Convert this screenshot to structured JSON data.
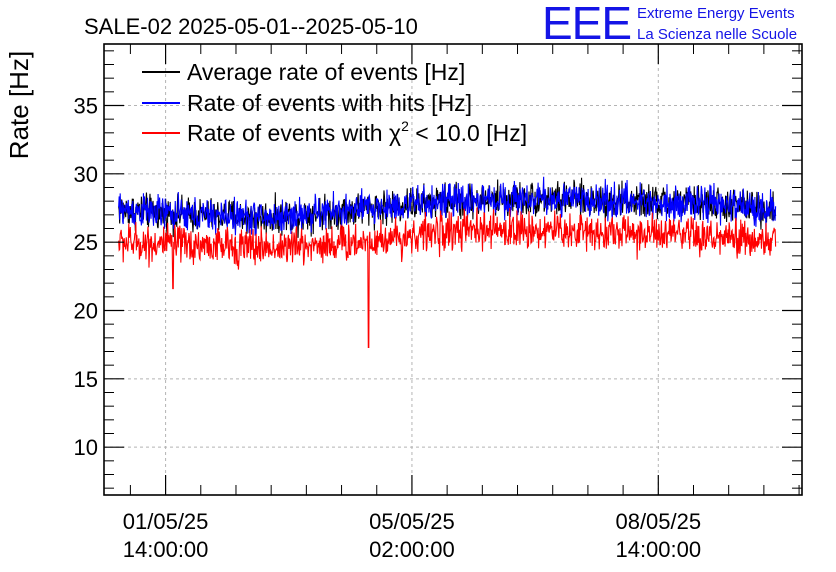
{
  "chart_data": {
    "type": "line",
    "title": "SALE-02 2025-05-01--2025-05-10",
    "logo": {
      "mark": "EEE",
      "line1": "Extreme Energy Events",
      "line2": "La Scienza nelle Scuole"
    },
    "ylabel": "Rate [Hz]",
    "xlabel": "",
    "ylim": [
      6.5,
      39.5
    ],
    "y_ticks": [
      10,
      15,
      20,
      25,
      30,
      35
    ],
    "x_unit": "hours since 2025-05-01 00:00",
    "xlim": [
      -7.0,
      231.0
    ],
    "x_ticks": [
      {
        "value": 14,
        "date": "01/05/25",
        "time": "14:00:00"
      },
      {
        "value": 98,
        "date": "05/05/25",
        "time": "02:00:00"
      },
      {
        "value": 182,
        "date": "08/05/25",
        "time": "14:00:00"
      }
    ],
    "grid": true,
    "legend_position": "top-left",
    "series": [
      {
        "name": "Average rate of events [Hz]",
        "color": "#000000",
        "x_range": [
          -2.0,
          222.0
        ],
        "centers": [
          [
            -2,
            27.4
          ],
          [
            20,
            27.0
          ],
          [
            50,
            26.8
          ],
          [
            80,
            27.4
          ],
          [
            110,
            28.0
          ],
          [
            140,
            28.2
          ],
          [
            170,
            28.0
          ],
          [
            200,
            27.8
          ],
          [
            222,
            27.4
          ]
        ],
        "spread": 1.0
      },
      {
        "name": "Rate of events with hits [Hz]",
        "color": "#0000ff",
        "x_range": [
          -2.0,
          222.0
        ],
        "centers": [
          [
            -2,
            27.4
          ],
          [
            20,
            27.0
          ],
          [
            50,
            26.8
          ],
          [
            80,
            27.4
          ],
          [
            110,
            28.0
          ],
          [
            140,
            28.2
          ],
          [
            170,
            28.0
          ],
          [
            200,
            27.8
          ],
          [
            222,
            27.4
          ]
        ],
        "spread": 1.0
      },
      {
        "name": "Rate of events with χ² < 10.0 [Hz]",
        "color": "#ff0000",
        "x_range": [
          -2.0,
          222.0
        ],
        "centers": [
          [
            -2,
            25.0
          ],
          [
            20,
            24.8
          ],
          [
            50,
            24.6
          ],
          [
            80,
            25.0
          ],
          [
            110,
            25.8
          ],
          [
            140,
            25.9
          ],
          [
            170,
            25.7
          ],
          [
            200,
            25.3
          ],
          [
            222,
            25.0
          ]
        ],
        "spread": 1.1,
        "dips": [
          {
            "x": 83.2,
            "y": 17.3
          },
          {
            "x": 16.5,
            "y": 21.6
          }
        ]
      }
    ],
    "legend": [
      {
        "label": "Average rate of events [Hz]",
        "color": "#000000"
      },
      {
        "label": "Rate of events with hits [Hz]",
        "color": "#0000ff"
      },
      {
        "label_main": "Rate of events with χ",
        "label_sup": "2",
        "label_rest": " < 10.0 [Hz]",
        "color": "#ff0000"
      }
    ]
  }
}
